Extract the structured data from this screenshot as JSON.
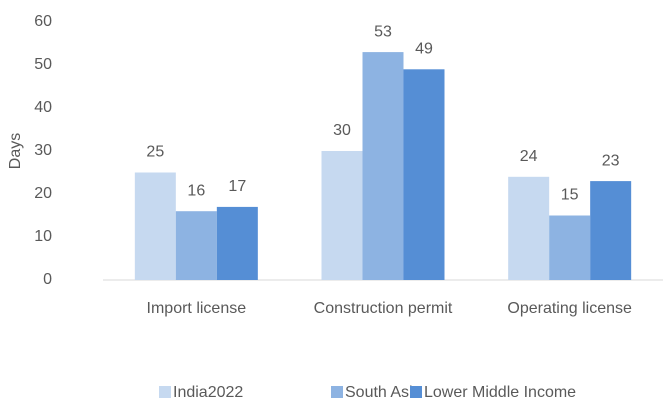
{
  "chart_data": {
    "type": "bar",
    "y_label": "Days",
    "categories": [
      "Import license",
      "Construction permit",
      "Operating license"
    ],
    "series": [
      {
        "name": "India2022",
        "color": "#c6d9f0",
        "values": [
          25,
          30,
          24
        ]
      },
      {
        "name": "South Asia",
        "color": "#8db3e2",
        "values": [
          16,
          53,
          15
        ]
      },
      {
        "name": "Lower Middle Income",
        "color": "#558ed5",
        "values": [
          17,
          49,
          23
        ]
      }
    ],
    "ylim": [
      0,
      60
    ],
    "yticks": [
      0,
      10,
      20,
      30,
      40,
      50,
      60
    ],
    "grid": false,
    "legend": "bottom"
  }
}
